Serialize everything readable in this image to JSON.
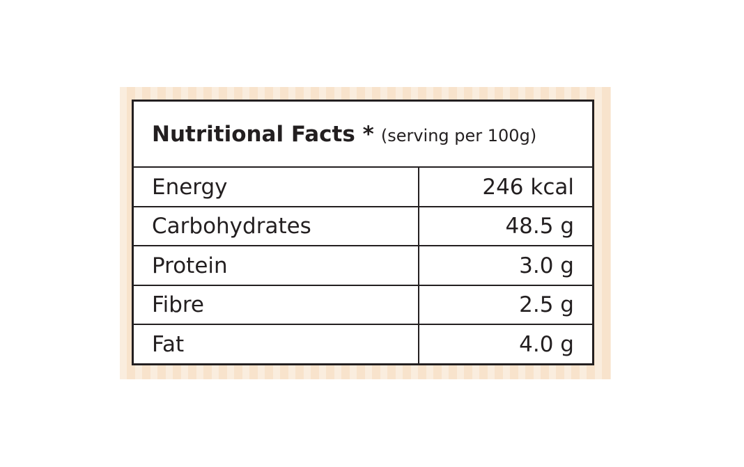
{
  "table": {
    "title": "Nutritional Facts *",
    "subtitle": "(serving per 100g)",
    "rows": [
      [
        "Energy",
        "246 kcal"
      ],
      [
        "Carbohydrates",
        "48.5 g"
      ],
      [
        "Protein",
        "3.0 g"
      ],
      [
        "Fibre",
        "2.5 g"
      ],
      [
        "Fat",
        "4.0 g"
      ]
    ]
  }
}
